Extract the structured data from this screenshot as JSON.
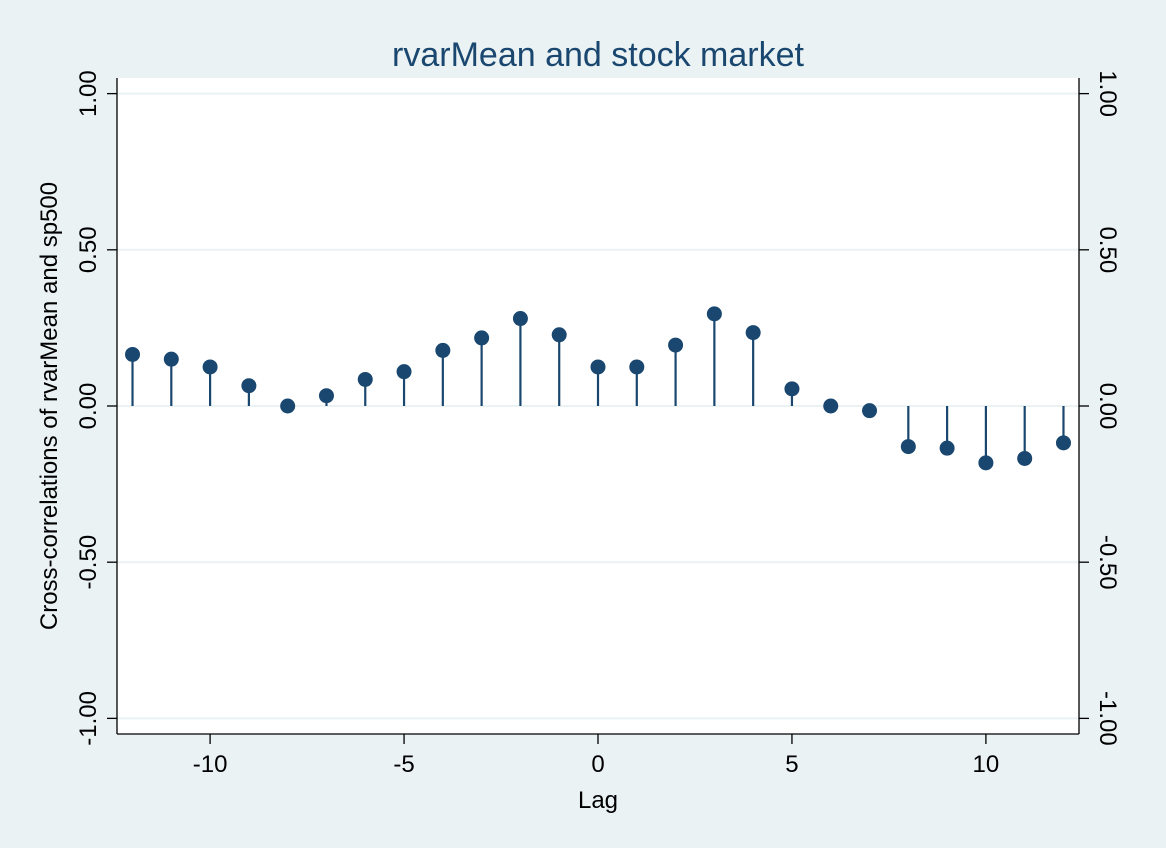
{
  "chart_data": {
    "type": "scatter",
    "title": "rvarMean and stock market",
    "xlabel": "Lag",
    "ylabel": "Cross-correlations of rvarMean and sp500",
    "xlim": [
      -12.4,
      12.4
    ],
    "ylim": [
      -1.05,
      1.05
    ],
    "x_ticks": [
      -10,
      -5,
      0,
      5,
      10
    ],
    "x_tick_labels": [
      "-10",
      "-5",
      "0",
      "5",
      "10"
    ],
    "y_ticks": [
      -1,
      -0.5,
      0,
      0.5,
      1
    ],
    "y_tick_labels": [
      "-1.00",
      "-0.50",
      "0.00",
      "0.50",
      "1.00"
    ],
    "right_axis": true,
    "grid": "horizontal",
    "style": "spike-with-markers",
    "colors": {
      "marker": "#1a476f",
      "title": "#1a476f",
      "background": "#eaf2f3",
      "plot_area": "#ffffff"
    },
    "x": [
      -12,
      -11,
      -10,
      -9,
      -8,
      -7,
      -6,
      -5,
      -4,
      -3,
      -2,
      -1,
      0,
      1,
      2,
      3,
      4,
      5,
      6,
      7,
      8,
      9,
      10,
      11,
      12
    ],
    "values": [
      0.165,
      0.15,
      0.125,
      0.065,
      0.0,
      0.033,
      0.085,
      0.11,
      0.178,
      0.218,
      0.28,
      0.228,
      0.125,
      0.125,
      0.195,
      0.295,
      0.235,
      0.055,
      0.0,
      -0.015,
      -0.13,
      -0.135,
      -0.182,
      -0.168,
      -0.118
    ]
  }
}
